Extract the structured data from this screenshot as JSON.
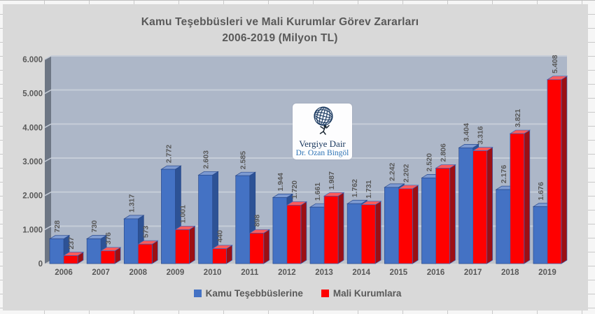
{
  "chart": {
    "title_line1": "Kamu Teşebbüsleri ve Mali Kurumlar Görev Zararları",
    "title_line2": "2006-2019 (Milyon TL)"
  },
  "watermark": {
    "line1": "Vergiye Dair",
    "line2": "Dr. Ozan Bingöl",
    "icon": "globe-atlas-icon",
    "text_color_1": "#17365d",
    "text_color_2": "#2e74b5"
  },
  "legend": {
    "items": [
      {
        "label": "Kamu Teşebbüslerine",
        "color": "#4472c4"
      },
      {
        "label": "Mali Kurumlara",
        "color": "#fe0000"
      }
    ]
  },
  "chart_data": {
    "type": "bar",
    "style": "3d-clustered-column",
    "title": "Kamu Teşebbüsleri ve Mali Kurumlar Görev Zararları 2006-2019 (Milyon TL)",
    "xlabel": "",
    "ylabel": "",
    "ylim": [
      0,
      6000
    ],
    "grid": true,
    "legend_position": "bottom",
    "y_ticks": [
      "6.000",
      "5.000",
      "4.000",
      "3.000",
      "2.000",
      "1.000",
      "0"
    ],
    "categories": [
      "2006",
      "2007",
      "2008",
      "2009",
      "2010",
      "2011",
      "2012",
      "2013",
      "2014",
      "2015",
      "2016",
      "2017",
      "2018",
      "2019"
    ],
    "series": [
      {
        "name": "Kamu Teşebbüslerine",
        "values": [
          728,
          730,
          1317,
          2772,
          2603,
          2585,
          1944,
          1661,
          1762,
          2242,
          2520,
          3404,
          2176,
          1676
        ],
        "labels": [
          "728",
          "730",
          "1.317",
          "2.772",
          "2.603",
          "2.585",
          "1.944",
          "1.661",
          "1.762",
          "2.242",
          "2.520",
          "3.404",
          "2.176",
          "1.676"
        ],
        "colors": {
          "front": "#4472c4",
          "side": "#2d5295",
          "top": "#7d9ad1",
          "stroke": "#2a4a8c"
        }
      },
      {
        "name": "Mali Kurumlara",
        "values": [
          237,
          376,
          573,
          1001,
          440,
          898,
          1720,
          1987,
          1731,
          2202,
          2806,
          3316,
          3821,
          5408
        ],
        "labels": [
          "237",
          "376",
          "573",
          "1.001",
          "440",
          "898",
          "1.720",
          "1.987",
          "1.731",
          "2.202",
          "2.806",
          "3.316",
          "3.821",
          "5.408"
        ],
        "colors": {
          "front": "#fe0000",
          "side": "#9c0f14",
          "top": "#ff5b5b",
          "stroke": "#3a64b8"
        }
      }
    ],
    "plot": {
      "chart_bg": "#d9d9d9",
      "wall": "#adb7c8",
      "side_wall": "#6d7684",
      "floor": "#c2c6cc",
      "gridline": "#c6cdd8",
      "label_color": "#595959"
    }
  }
}
